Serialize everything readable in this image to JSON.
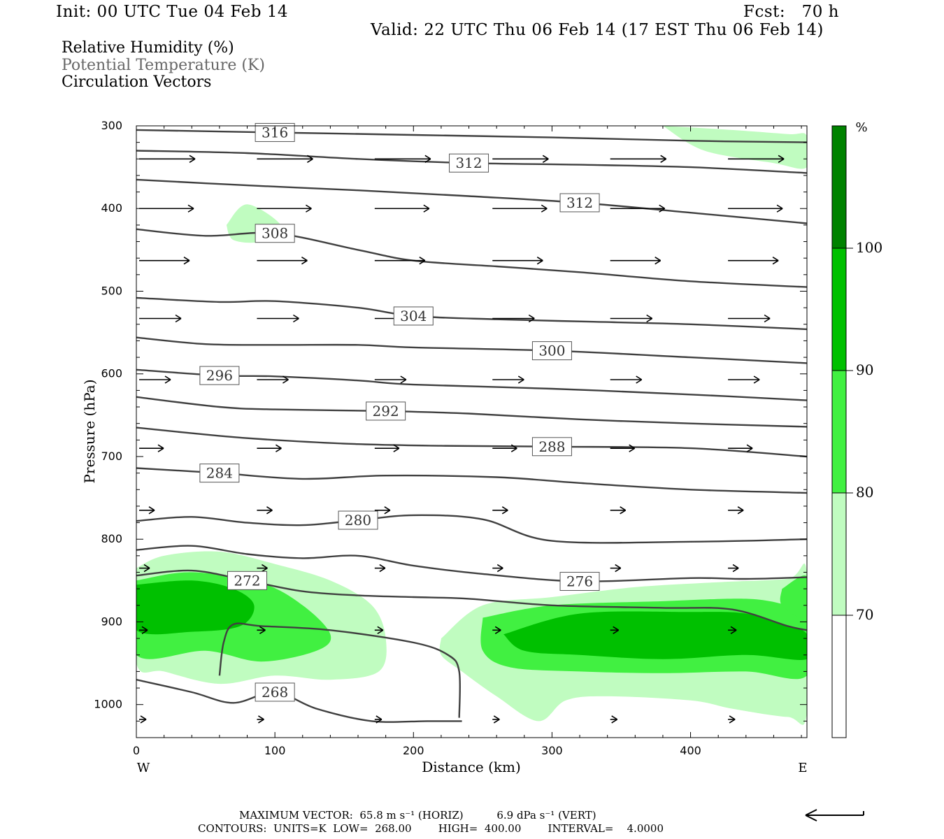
{
  "header": {
    "init": "Init: 00 UTC Tue 04 Feb 14",
    "fcst": "Fcst:   70 h",
    "valid": "Valid: 22 UTC Thu 06 Feb 14 (17 EST Thu 06 Feb 14)"
  },
  "legend_text": {
    "line1": "Relative Humidity (%)",
    "line2": "Potential Temperature (K)",
    "line3": "Circulation Vectors"
  },
  "colors": {
    "rh_70_80": "#c0fcc0",
    "rh_80_90": "#41f041",
    "rh_90_100": "#00c000",
    "rh_100_plus": "#008200",
    "theta_line": "#404040"
  },
  "chart_data": {
    "type": "cross-section",
    "xlabel": "Distance (km)",
    "ylabel": "Pressure (hPa)",
    "xlim": [
      0,
      484
    ],
    "ylim": [
      1040,
      300
    ],
    "x_ticks": [
      0,
      100,
      200,
      300,
      400
    ],
    "y_ticks": [
      300,
      400,
      500,
      600,
      700,
      800,
      900,
      1000
    ],
    "x_end_labels": {
      "left": "W",
      "right": "E"
    },
    "colorbar": {
      "unit": "%",
      "levels": [
        70,
        80,
        90,
        100
      ]
    },
    "theta_contours": [
      {
        "label": "316",
        "x": [
          0,
          100,
          200,
          300,
          400,
          484
        ],
        "p": [
          305,
          308,
          311,
          314,
          318,
          320
        ]
      },
      {
        "label": "312",
        "x": [
          0,
          80,
          160,
          240,
          320,
          400,
          484
        ],
        "p": [
          330,
          333,
          340,
          345,
          347,
          350,
          357
        ]
      },
      {
        "label": "312",
        "x": [
          0,
          80,
          160,
          240,
          320,
          400,
          484
        ],
        "p": [
          365,
          372,
          378,
          385,
          393,
          405,
          418
        ]
      },
      {
        "label": "308",
        "x": [
          0,
          50,
          100,
          160,
          200,
          260,
          320,
          400,
          484
        ],
        "p": [
          425,
          433,
          430,
          450,
          463,
          470,
          477,
          488,
          495
        ]
      },
      {
        "label": "304",
        "x": [
          0,
          60,
          100,
          160,
          200,
          260,
          330,
          400,
          484
        ],
        "p": [
          508,
          513,
          512,
          520,
          530,
          534,
          537,
          540,
          546
        ]
      },
      {
        "label": "300",
        "x": [
          0,
          50,
          100,
          160,
          200,
          300,
          400,
          484
        ],
        "p": [
          556,
          564,
          565,
          565,
          568,
          572,
          580,
          587
        ]
      },
      {
        "label": "296",
        "x": [
          0,
          60,
          100,
          160,
          200,
          300,
          400,
          484
        ],
        "p": [
          595,
          602,
          603,
          608,
          613,
          618,
          625,
          632
        ]
      },
      {
        "label": "292",
        "x": [
          0,
          60,
          100,
          180,
          240,
          320,
          400,
          484
        ],
        "p": [
          628,
          640,
          643,
          645,
          648,
          655,
          660,
          664
        ]
      },
      {
        "label": "288",
        "x": [
          0,
          60,
          100,
          160,
          220,
          300,
          400,
          484
        ],
        "p": [
          665,
          675,
          680,
          685,
          687,
          688,
          690,
          700
        ]
      },
      {
        "label": "284",
        "x": [
          0,
          60,
          120,
          180,
          260,
          320,
          400,
          484
        ],
        "p": [
          714,
          720,
          727,
          723,
          725,
          732,
          740,
          744
        ]
      },
      {
        "label": "280",
        "x": [
          0,
          40,
          80,
          120,
          160,
          200,
          250,
          300,
          400,
          484
        ],
        "p": [
          778,
          773,
          780,
          783,
          777,
          771,
          776,
          802,
          803,
          800
        ]
      },
      {
        "label": "276",
        "x": [
          0,
          40,
          80,
          120,
          160,
          200,
          250,
          320,
          400,
          440,
          484
        ],
        "p": [
          813,
          808,
          818,
          823,
          820,
          832,
          842,
          851,
          847,
          848,
          846
        ]
      },
      {
        "label": "272",
        "x": [
          0,
          40,
          80,
          120,
          160,
          200,
          240,
          300,
          380,
          430,
          470,
          484
        ],
        "p": [
          844,
          838,
          850,
          863,
          868,
          870,
          872,
          880,
          883,
          885,
          905,
          910
        ]
      },
      {
        "label": "268",
        "x": [
          0,
          40,
          70,
          100,
          130,
          170,
          210,
          235
        ],
        "p": [
          970,
          985,
          998,
          985,
          1005,
          1020,
          1020,
          1020
        ]
      },
      {
        "label": "",
        "x": [
          60,
          63,
          70,
          90,
          140,
          200,
          225,
          233,
          233
        ],
        "p": [
          965,
          925,
          903,
          905,
          910,
          925,
          940,
          960,
          1016
        ]
      }
    ],
    "rh_regions": [
      {
        "level": "70-80",
        "x": [
          0,
          20,
          60,
          100,
          140,
          170,
          180,
          175,
          140,
          100,
          60,
          20,
          0
        ],
        "p": [
          835,
          820,
          815,
          830,
          850,
          880,
          920,
          960,
          970,
          965,
          975,
          960,
          950
        ]
      },
      {
        "level": "70-80",
        "x": [
          220,
          250,
          300,
          360,
          420,
          470,
          484,
          484,
          470,
          430,
          400,
          340,
          310,
          290,
          260,
          235,
          220
        ],
        "p": [
          920,
          880,
          870,
          858,
          852,
          848,
          840,
          1010,
          1015,
          1005,
          995,
          990,
          995,
          1020,
          990,
          960,
          940
        ]
      },
      {
        "level": "70-80",
        "x": [
          380,
          430,
          470,
          484,
          484,
          460,
          410
        ],
        "p": [
          300,
          305,
          310,
          312,
          350,
          345,
          330
        ]
      },
      {
        "level": "70-80",
        "x": [
          65,
          80,
          105,
          90,
          70
        ],
        "p": [
          420,
          395,
          422,
          440,
          438
        ]
      },
      {
        "level": "80-90",
        "x": [
          0,
          40,
          90,
          120,
          140,
          130,
          90,
          50,
          0
        ],
        "p": [
          850,
          840,
          853,
          880,
          915,
          935,
          948,
          935,
          940
        ]
      },
      {
        "level": "80-90",
        "x": [
          250,
          300,
          380,
          440,
          470,
          484,
          484,
          440,
          380,
          320,
          270,
          250
        ],
        "p": [
          895,
          880,
          875,
          872,
          880,
          890,
          965,
          960,
          962,
          960,
          955,
          935
        ]
      },
      {
        "level": "90-100",
        "x": [
          0,
          40,
          70,
          85,
          75,
          40,
          0
        ],
        "p": [
          855,
          850,
          860,
          880,
          905,
          912,
          910
        ]
      },
      {
        "level": "90-100",
        "x": [
          265,
          320,
          400,
          440,
          470,
          484,
          484,
          440,
          380,
          320,
          280
        ],
        "p": [
          915,
          890,
          888,
          890,
          905,
          915,
          945,
          940,
          945,
          940,
          935
        ]
      },
      {
        "level": "80-90",
        "x": [
          466,
          484,
          484,
          466
        ],
        "p": [
          860,
          845,
          895,
          880
        ]
      }
    ],
    "vector_rows": [
      {
        "p": 340,
        "x": [
          0,
          85,
          170,
          255,
          340,
          425
        ],
        "len": 80
      },
      {
        "p": 400,
        "x": [
          0,
          85,
          170,
          255,
          340,
          425
        ],
        "len": 78
      },
      {
        "p": 463,
        "x": [
          0,
          85,
          170,
          255,
          340,
          425
        ],
        "len": 72
      },
      {
        "p": 533,
        "x": [
          0,
          85,
          170,
          255,
          340,
          425
        ],
        "len": 60
      },
      {
        "p": 607,
        "x": [
          0,
          85,
          170,
          255,
          340,
          425
        ],
        "len": 45
      },
      {
        "p": 690,
        "x": [
          0,
          85,
          170,
          255,
          340,
          425
        ],
        "len": 35
      },
      {
        "p": 765,
        "x": [
          0,
          85,
          170,
          255,
          340,
          425
        ],
        "len": 22
      },
      {
        "p": 835,
        "x": [
          0,
          85,
          170,
          255,
          340,
          425
        ],
        "len": 15
      },
      {
        "p": 910,
        "x": [
          0,
          85,
          170,
          255,
          340,
          425
        ],
        "len": 12
      },
      {
        "p": 1018,
        "x": [
          0,
          85,
          170,
          255,
          340,
          425
        ],
        "len": 10
      }
    ]
  },
  "footer": {
    "line1": "MAXIMUM VECTOR:  65.8 m s⁻¹ (HORIZ)          6.9 dPa s⁻¹ (VERT)",
    "line2": "CONTOURS:  UNITS=K  LOW=  268.00        HIGH=  400.00        INTERVAL=    4.0000"
  }
}
